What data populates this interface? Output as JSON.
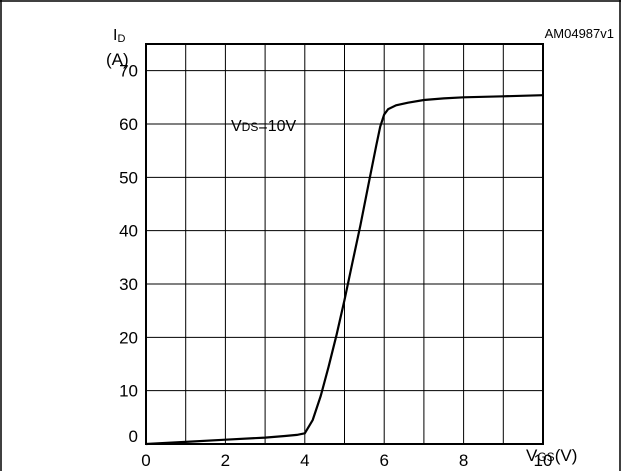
{
  "figure_id": "AM04987v1",
  "chart_data": {
    "type": "line",
    "xlabel": "VGS(V)",
    "ylabel_line1": "ID",
    "ylabel_line2": "(A)",
    "xlim": [
      0,
      10
    ],
    "ylim": [
      0,
      75
    ],
    "x_ticks": [
      0,
      2,
      4,
      6,
      8,
      10
    ],
    "y_ticks": [
      0,
      10,
      20,
      30,
      40,
      50,
      60,
      70
    ],
    "grid": true,
    "annotation": "VDS=10V",
    "series": [
      {
        "x": [
          0,
          1,
          2,
          3,
          3.5,
          3.8,
          4.0,
          4.2,
          4.4,
          4.6,
          4.8,
          5.0,
          5.2,
          5.4,
          5.6,
          5.8,
          5.9,
          6.0,
          6.1,
          6.3,
          6.6,
          7.0,
          7.5,
          8.0,
          9.0,
          10.0
        ],
        "y": [
          0,
          0.4,
          0.8,
          1.2,
          1.5,
          1.7,
          2.0,
          4.5,
          9.0,
          14.5,
          20.5,
          27.0,
          34.0,
          41.0,
          48.5,
          56.0,
          59.5,
          61.8,
          62.8,
          63.5,
          64.0,
          64.5,
          64.8,
          65.0,
          65.2,
          65.4
        ]
      }
    ]
  }
}
